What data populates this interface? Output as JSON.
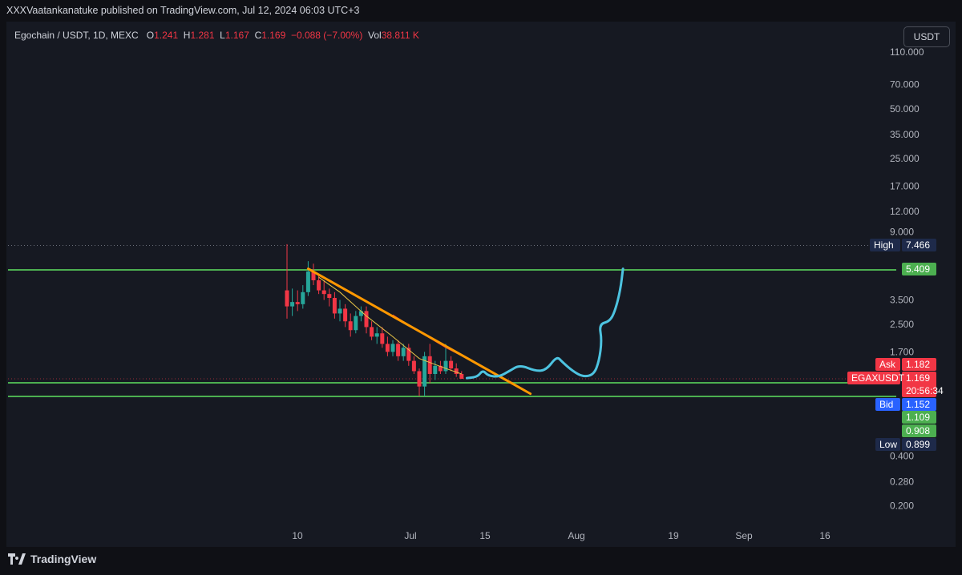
{
  "header": {
    "published": "XXXVaatankanatuke published on TradingView.com, Jul 12, 2024 06:03 UTC+3"
  },
  "legend": {
    "symbol": "Egochain / USDT, 1D, MEXC",
    "o_label": "O",
    "o": "1.241",
    "h_label": "H",
    "h": "1.281",
    "l_label": "L",
    "l": "1.167",
    "c_label": "C",
    "c": "1.169",
    "change": "−0.088 (−7.00%)",
    "vol_label": "Vol",
    "vol": "38.811 K"
  },
  "currency_button": "USDT",
  "footer": {
    "brand": "TradingView"
  },
  "colors": {
    "up": "#26a69a",
    "down": "#f23645",
    "level": "#4caf50",
    "trend": "#ff9800",
    "projection": "#4dc3e0"
  },
  "chart_data": {
    "type": "candlestick",
    "price_scale": "log",
    "y_ticks": [
      "110.000",
      "70.000",
      "50.000",
      "35.000",
      "25.000",
      "17.000",
      "12.000",
      "9.000",
      "3.500",
      "2.500",
      "1.700",
      "0.400",
      "0.280",
      "0.200"
    ],
    "x_ticks": [
      "10",
      "Jul",
      "15",
      "Aug",
      "19",
      "Sep",
      "16"
    ],
    "candles": [
      {
        "o": 4.0,
        "h": 7.6,
        "l": 2.7,
        "c": 3.2
      },
      {
        "o": 3.2,
        "h": 4.1,
        "l": 2.8,
        "c": 3.4
      },
      {
        "o": 3.4,
        "h": 4.0,
        "l": 3.0,
        "c": 3.3
      },
      {
        "o": 3.3,
        "h": 4.3,
        "l": 3.1,
        "c": 3.9
      },
      {
        "o": 3.9,
        "h": 6.0,
        "l": 3.7,
        "c": 5.2
      },
      {
        "o": 5.2,
        "h": 5.8,
        "l": 4.3,
        "c": 4.6
      },
      {
        "o": 4.6,
        "h": 5.0,
        "l": 3.8,
        "c": 4.0
      },
      {
        "o": 4.0,
        "h": 4.6,
        "l": 3.5,
        "c": 3.8
      },
      {
        "o": 3.8,
        "h": 4.1,
        "l": 3.2,
        "c": 3.6
      },
      {
        "o": 3.6,
        "h": 3.9,
        "l": 2.7,
        "c": 2.9
      },
      {
        "o": 2.9,
        "h": 3.5,
        "l": 2.6,
        "c": 3.1
      },
      {
        "o": 3.1,
        "h": 3.3,
        "l": 2.4,
        "c": 2.6
      },
      {
        "o": 2.6,
        "h": 2.9,
        "l": 2.1,
        "c": 2.3
      },
      {
        "o": 2.3,
        "h": 3.0,
        "l": 2.2,
        "c": 2.8
      },
      {
        "o": 2.8,
        "h": 3.2,
        "l": 2.6,
        "c": 3.0
      },
      {
        "o": 3.0,
        "h": 3.2,
        "l": 2.2,
        "c": 2.4
      },
      {
        "o": 2.4,
        "h": 2.6,
        "l": 2.0,
        "c": 2.1
      },
      {
        "o": 2.1,
        "h": 2.4,
        "l": 1.9,
        "c": 2.2
      },
      {
        "o": 2.2,
        "h": 2.4,
        "l": 1.8,
        "c": 1.9
      },
      {
        "o": 1.9,
        "h": 2.1,
        "l": 1.6,
        "c": 1.7
      },
      {
        "o": 1.7,
        "h": 2.0,
        "l": 1.6,
        "c": 1.9
      },
      {
        "o": 1.9,
        "h": 2.0,
        "l": 1.5,
        "c": 1.6
      },
      {
        "o": 1.6,
        "h": 1.9,
        "l": 1.5,
        "c": 1.8
      },
      {
        "o": 1.8,
        "h": 1.9,
        "l": 1.4,
        "c": 1.5
      },
      {
        "o": 1.5,
        "h": 1.6,
        "l": 1.25,
        "c": 1.3
      },
      {
        "o": 1.3,
        "h": 1.35,
        "l": 0.92,
        "c": 1.05
      },
      {
        "o": 1.05,
        "h": 1.7,
        "l": 0.92,
        "c": 1.6
      },
      {
        "o": 1.6,
        "h": 1.9,
        "l": 1.1,
        "c": 1.25
      },
      {
        "o": 1.25,
        "h": 1.5,
        "l": 1.15,
        "c": 1.4
      },
      {
        "o": 1.4,
        "h": 1.5,
        "l": 1.25,
        "c": 1.3
      },
      {
        "o": 1.3,
        "h": 1.9,
        "l": 1.25,
        "c": 1.5
      },
      {
        "o": 1.5,
        "h": 1.6,
        "l": 1.3,
        "c": 1.35
      },
      {
        "o": 1.35,
        "h": 1.45,
        "l": 1.2,
        "c": 1.25
      },
      {
        "o": 1.25,
        "h": 1.3,
        "l": 1.167,
        "c": 1.169
      }
    ],
    "horizontal_levels": [
      5.409,
      1.109,
      0.908
    ],
    "high_line": 7.466,
    "trendline": {
      "from": {
        "bar": 4,
        "price": 5.4
      },
      "to": {
        "bar": 46,
        "price": 0.95
      }
    },
    "ma_fast": [
      {
        "bar": 6,
        "price": 4.8
      },
      {
        "bar": 10,
        "price": 3.9
      },
      {
        "bar": 15,
        "price": 2.8
      },
      {
        "bar": 20,
        "price": 2.1
      },
      {
        "bar": 25,
        "price": 1.55
      },
      {
        "bar": 30,
        "price": 1.35
      },
      {
        "bar": 33,
        "price": 1.25
      }
    ],
    "ma_slow": [
      {
        "bar": 20,
        "price": 2.85
      },
      {
        "bar": 25,
        "price": 2.25
      },
      {
        "bar": 30,
        "price": 1.8
      },
      {
        "bar": 34,
        "price": 1.55
      }
    ],
    "projection": [
      {
        "bar": 34,
        "price": 1.18
      },
      {
        "bar": 36,
        "price": 1.2
      },
      {
        "bar": 37,
        "price": 1.32
      },
      {
        "bar": 38,
        "price": 1.22
      },
      {
        "bar": 40,
        "price": 1.2
      },
      {
        "bar": 42,
        "price": 1.3
      },
      {
        "bar": 44,
        "price": 1.42
      },
      {
        "bar": 47,
        "price": 1.3
      },
      {
        "bar": 49,
        "price": 1.32
      },
      {
        "bar": 51,
        "price": 1.6
      },
      {
        "bar": 52,
        "price": 1.48
      },
      {
        "bar": 54,
        "price": 1.3
      },
      {
        "bar": 56,
        "price": 1.2
      },
      {
        "bar": 58,
        "price": 1.24
      },
      {
        "bar": 59,
        "price": 1.5
      },
      {
        "bar": 59.5,
        "price": 2.0
      },
      {
        "bar": 59,
        "price": 2.5
      },
      {
        "bar": 61,
        "price": 2.6
      },
      {
        "bar": 62,
        "price": 3.0
      },
      {
        "bar": 63,
        "price": 4.0
      },
      {
        "bar": 63.5,
        "price": 5.4
      }
    ],
    "price_labels": [
      {
        "text": "High",
        "value": "7.466",
        "price": 7.466,
        "tag_color": "#1e2a4a",
        "val_color": "#1e2a4a"
      },
      {
        "text": "",
        "value": "5.409",
        "price": 5.409,
        "tag_color": "",
        "val_color": "#4caf50"
      },
      {
        "text": "Ask",
        "value": "1.182",
        "price": 1.26,
        "tag_color": "#f23645",
        "val_color": "#f23645"
      },
      {
        "text": "EGAXUSDT",
        "value": "1.169",
        "price": 1.169,
        "tag_color": "#f23645",
        "val_color": "#f23645",
        "sub": "20:56:34"
      },
      {
        "text": "Bid",
        "value": "1.152",
        "price": 1.0,
        "tag_color": "#2962ff",
        "val_color": "#2962ff"
      },
      {
        "text": "",
        "value": "1.109",
        "price": 0.86,
        "tag_color": "",
        "val_color": "#4caf50"
      },
      {
        "text": "",
        "value": "0.908",
        "price": 0.76,
        "tag_color": "",
        "val_color": "#4caf50"
      },
      {
        "text": "Low",
        "value": "0.899",
        "price": 0.66,
        "tag_color": "#1e2a4a",
        "val_color": "#1e2a4a"
      }
    ]
  }
}
